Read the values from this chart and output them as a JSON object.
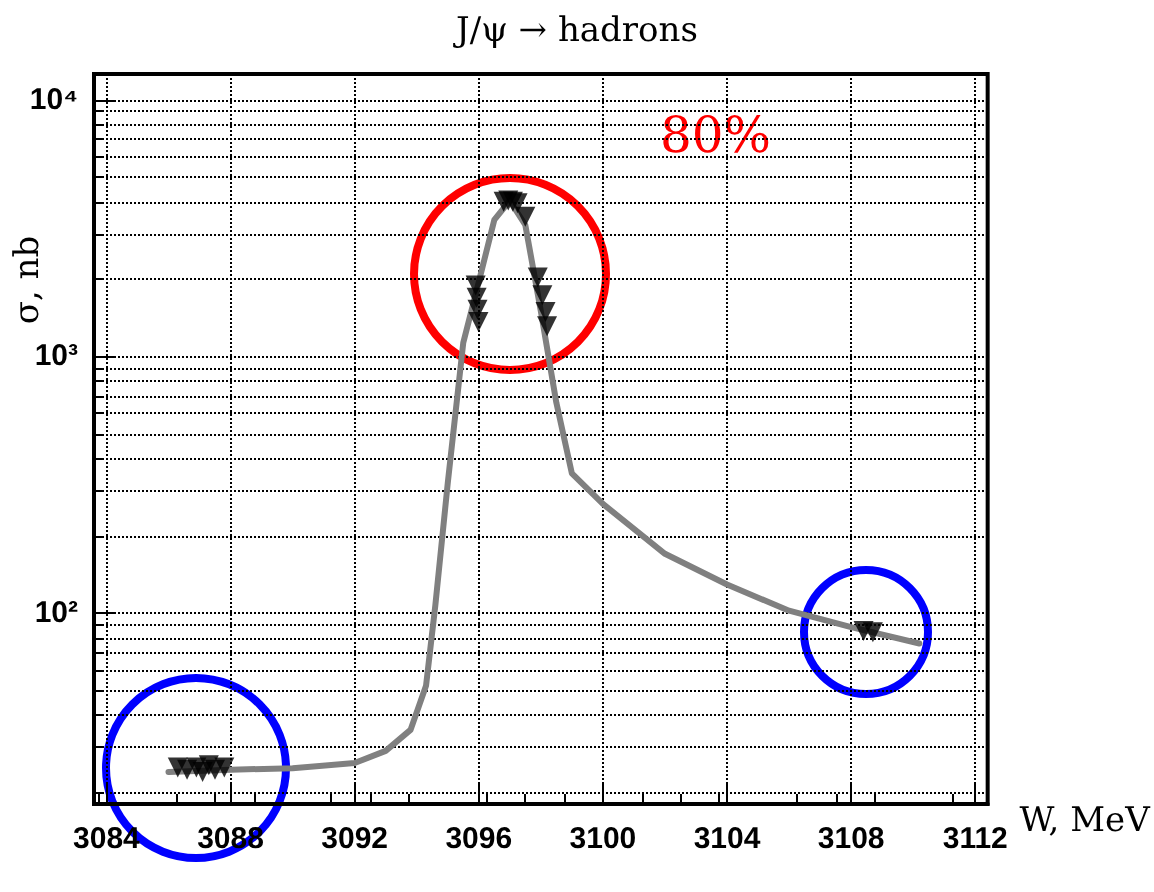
{
  "chart_data": {
    "type": "scatter",
    "title": "J/ψ → hadrons",
    "xlabel": "W, MeV",
    "ylabel": "σ, nb",
    "annotations": [
      "80%"
    ],
    "xlim": [
      3083.6,
      3112.4
    ],
    "xticks": [
      3084,
      3088,
      3092,
      3096,
      3100,
      3104,
      3108,
      3112
    ],
    "ylim": [
      18,
      12600
    ],
    "yticks": [
      {
        "value": 100,
        "label": "10²"
      },
      {
        "value": 1000,
        "label": "10³"
      },
      {
        "value": 10000,
        "label": "10⁴"
      }
    ],
    "log": true,
    "grid": true,
    "series": [
      {
        "type": "line",
        "color": "#808080",
        "marker": "none",
        "line_style": "solid",
        "x": [
          3086.0,
          3088,
          3090,
          3092,
          3093,
          3093.8,
          3094.3,
          3094.6,
          3095,
          3095.5,
          3096,
          3096.5,
          3097,
          3097.5,
          3098,
          3098.5,
          3099,
          3100,
          3102,
          3104,
          3106,
          3108,
          3110.2
        ],
        "values": [
          24,
          24.5,
          24.8,
          26,
          29,
          35,
          52,
          107,
          320,
          1130,
          1950,
          3400,
          4040,
          3250,
          1500,
          660,
          350,
          266,
          170,
          129,
          102,
          88,
          76
        ]
      },
      {
        "color": "#000000",
        "marker": "triangle",
        "x": [
          3086.3,
          3086.6,
          3086.9,
          3087.1,
          3087.3,
          3087.5,
          3087.8,
          3095.9,
          3095.93,
          3095.96,
          3095.99,
          3096.8,
          3096.95,
          3097.1,
          3097.25,
          3097.5,
          3097.9,
          3098.05,
          3098.15,
          3098.2,
          3108.4,
          3108.7
        ],
        "values": [
          25,
          24.5,
          25,
          24,
          25.5,
          24.5,
          25,
          1890,
          1690,
          1520,
          1360,
          4000,
          4050,
          4000,
          3950,
          3500,
          2030,
          1730,
          1490,
          1310,
          85,
          84
        ]
      }
    ]
  }
}
